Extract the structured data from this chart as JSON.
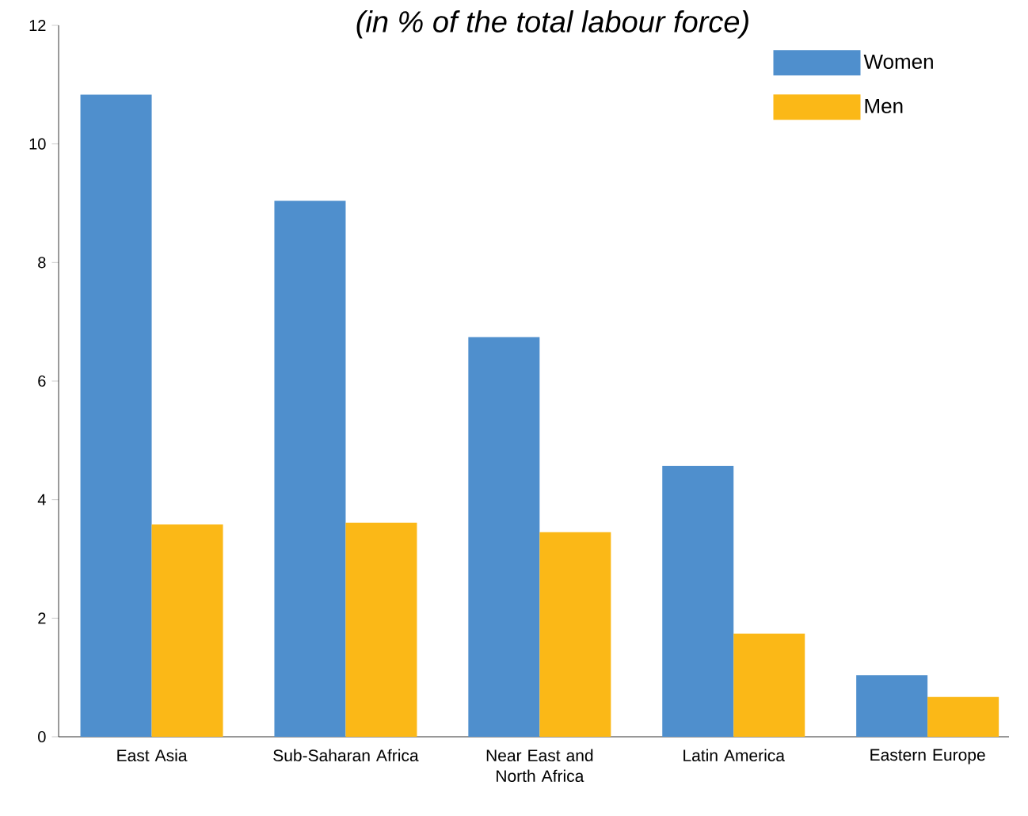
{
  "chart_data": {
    "type": "bar",
    "title": "(in % of the total labour force)",
    "categories": [
      "East Asia",
      "Sub-Saharan Africa",
      "Near East and North Africa",
      "Latin America",
      "Eastern Europe"
    ],
    "series": [
      {
        "name": "Women",
        "color": "#4f8fcd",
        "values": [
          10.83,
          9.04,
          6.74,
          4.57,
          1.04
        ]
      },
      {
        "name": "Men",
        "color": "#fbb817",
        "values": [
          3.58,
          3.61,
          3.45,
          1.74,
          0.67
        ]
      }
    ],
    "ylim": [
      0,
      12
    ],
    "yticks": [
      0,
      2,
      4,
      6,
      8,
      10,
      12
    ],
    "grid": false,
    "legend": "top right"
  }
}
